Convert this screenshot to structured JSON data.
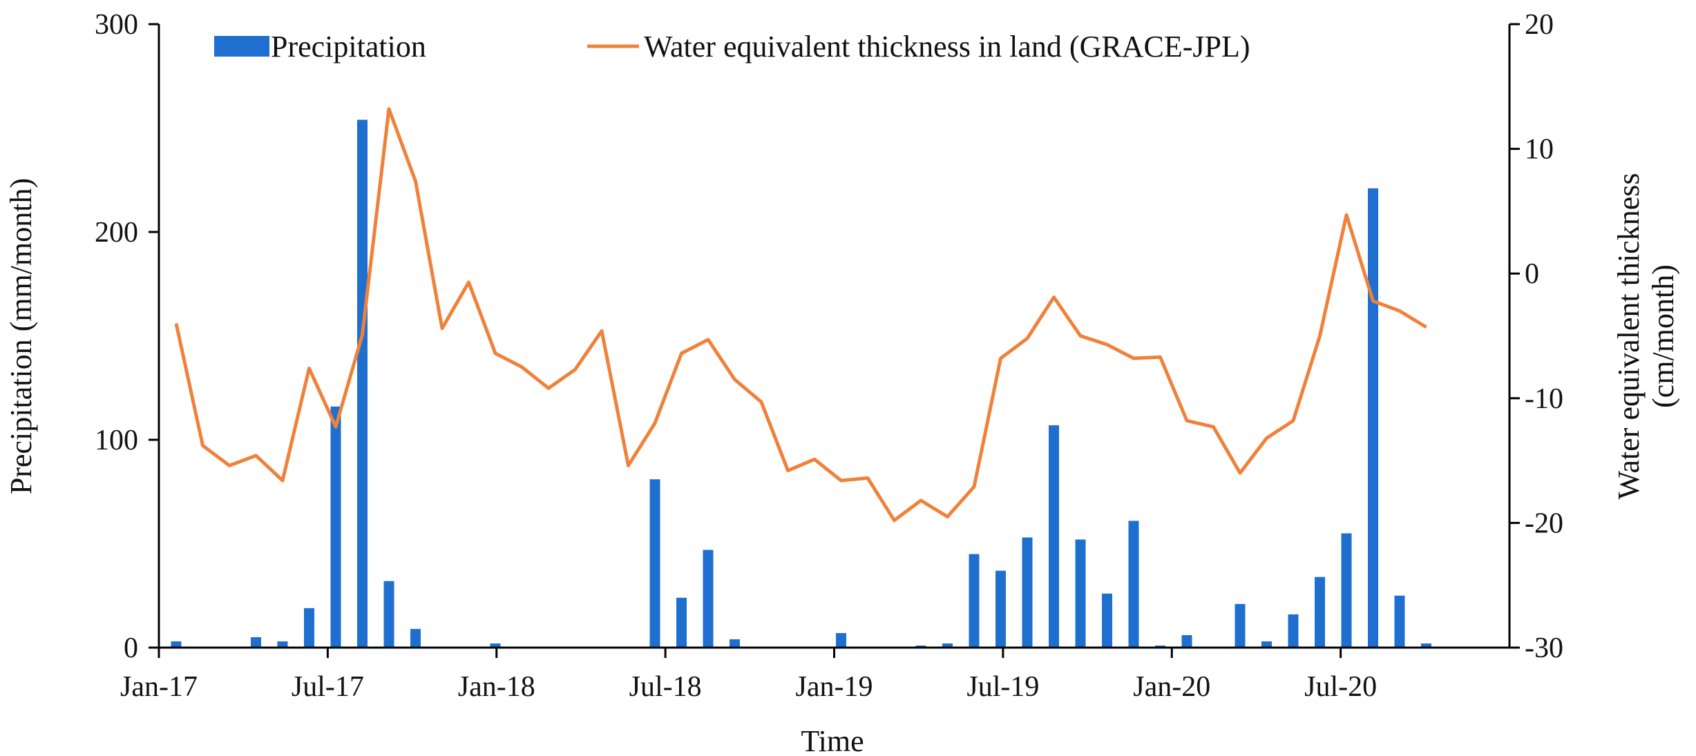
{
  "chart_data": {
    "type": "bar+line",
    "title": "",
    "xlabel": "Time",
    "ylabel_left": "Precipitation (mm/month)",
    "ylabel_right_lines": [
      "Water equivalent thickness",
      "(cm/month)"
    ],
    "ylim_left": [
      0,
      300
    ],
    "ylim_right": [
      -30,
      20
    ],
    "yticks_left": [
      "0",
      "100",
      "200",
      "300"
    ],
    "yticks_right": [
      "-30",
      "-20",
      "-10",
      "0",
      "10",
      "20"
    ],
    "xtick_labels": [
      "Jan-17",
      "Jul-17",
      "Jan-18",
      "Jul-18",
      "Jan-19",
      "Jul-19",
      "Jan-20",
      "Jul-20"
    ],
    "xtick_month_index": [
      0,
      6,
      12,
      18,
      24,
      30,
      36,
      42
    ],
    "months_count": 48,
    "legend_position": "top",
    "colors": {
      "precipitation": "#1f6fd1",
      "grace": "#f0813a",
      "axis": "#000000"
    },
    "series": [
      {
        "name": "Precipitation",
        "kind": "bar",
        "axis": "left",
        "values": [
          3,
          0,
          0,
          5,
          3,
          19,
          116,
          254,
          32,
          9,
          0,
          0,
          2,
          0,
          0,
          0,
          0,
          0,
          81,
          24,
          47,
          4,
          0,
          0,
          0,
          7,
          0,
          0,
          1,
          2,
          45,
          37,
          53,
          107,
          52,
          26,
          61,
          1,
          6,
          0,
          21,
          3,
          16,
          34,
          55,
          221,
          25,
          2
        ]
      },
      {
        "name": "Water equivalent thickness in land (GRACE-JPL)",
        "kind": "line",
        "axis": "right",
        "values": [
          -4,
          -13.8,
          -15.4,
          -14.6,
          -16.6,
          -7.6,
          -12.3,
          -4.9,
          13.2,
          7.4,
          -4.4,
          -0.7,
          -6.4,
          -7.5,
          -9.2,
          -7.7,
          -4.6,
          -15.4,
          -12,
          -6.4,
          -5.3,
          -8.5,
          -10.3,
          -15.8,
          -14.9,
          -16.6,
          -16.4,
          -19.8,
          -18.2,
          -19.5,
          -17.1,
          -6.8,
          -5.2,
          -1.9,
          -5,
          -5.7,
          -6.8,
          -6.7,
          -11.8,
          -12.3,
          -16,
          -13.2,
          -11.8,
          -5,
          4.7,
          -2.2,
          -3,
          -4.3
        ]
      }
    ]
  }
}
